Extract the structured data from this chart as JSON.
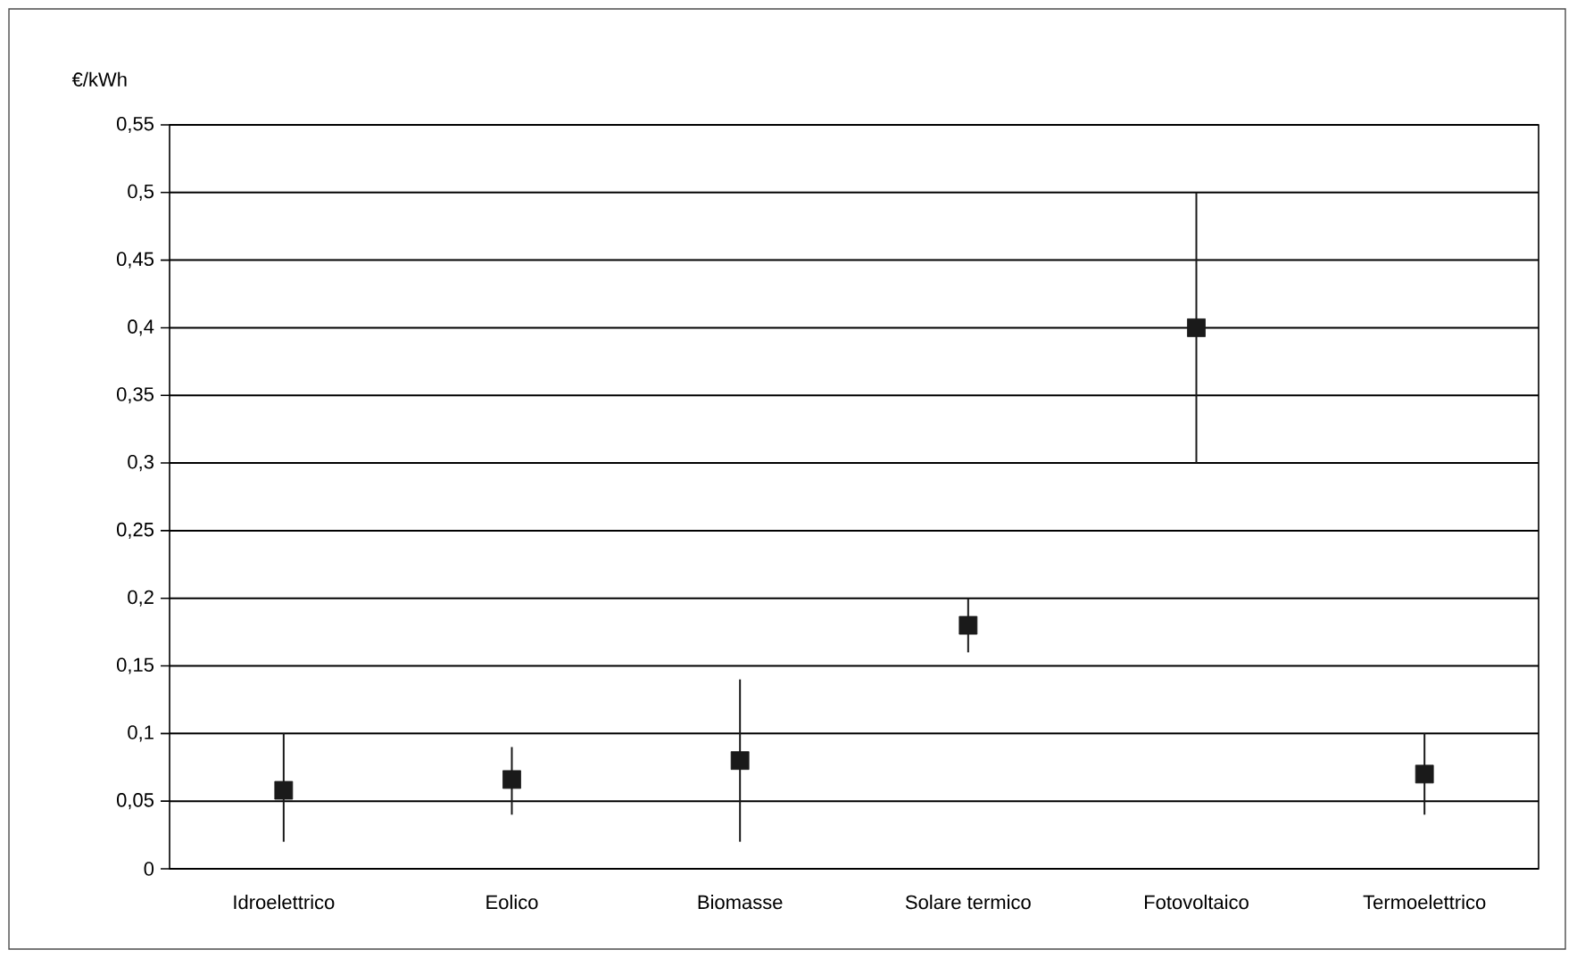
{
  "chart_data": {
    "type": "scatter",
    "ylabel": "€/kWh",
    "categories": [
      "Idroelettrico",
      "Eolico",
      "Biomasse",
      "Solare termico",
      "Fotovoltaico",
      "Termoelettrico"
    ],
    "values": [
      0.058,
      0.066,
      0.08,
      0.18,
      0.4,
      0.07
    ],
    "errors": [
      [
        0.02,
        0.1
      ],
      [
        0.04,
        0.09
      ],
      [
        0.02,
        0.14
      ],
      [
        0.16,
        0.2
      ],
      [
        0.3,
        0.5
      ],
      [
        0.04,
        0.1
      ]
    ],
    "color": "#1a1a1a",
    "marker": "square",
    "grid": "y",
    "ylim": [
      0,
      0.55
    ],
    "yticks": [
      0,
      {
        "value": 0.05,
        "label": "0,05"
      },
      {
        "value": 0.1,
        "label": "0,1"
      },
      {
        "value": 0.15,
        "label": "0,15"
      },
      {
        "value": 0.2,
        "label": "0,2"
      },
      {
        "value": 0.25,
        "label": "0,25"
      },
      {
        "value": 0.3,
        "label": "0,3"
      },
      {
        "value": 0.35,
        "label": "0,35"
      },
      {
        "value": 0.4,
        "label": "0,4"
      },
      {
        "value": 0.45,
        "label": "0,45"
      },
      {
        "value": 0.5,
        "label": "0,5"
      },
      {
        "value": 0.55,
        "label": "0,55"
      }
    ]
  }
}
